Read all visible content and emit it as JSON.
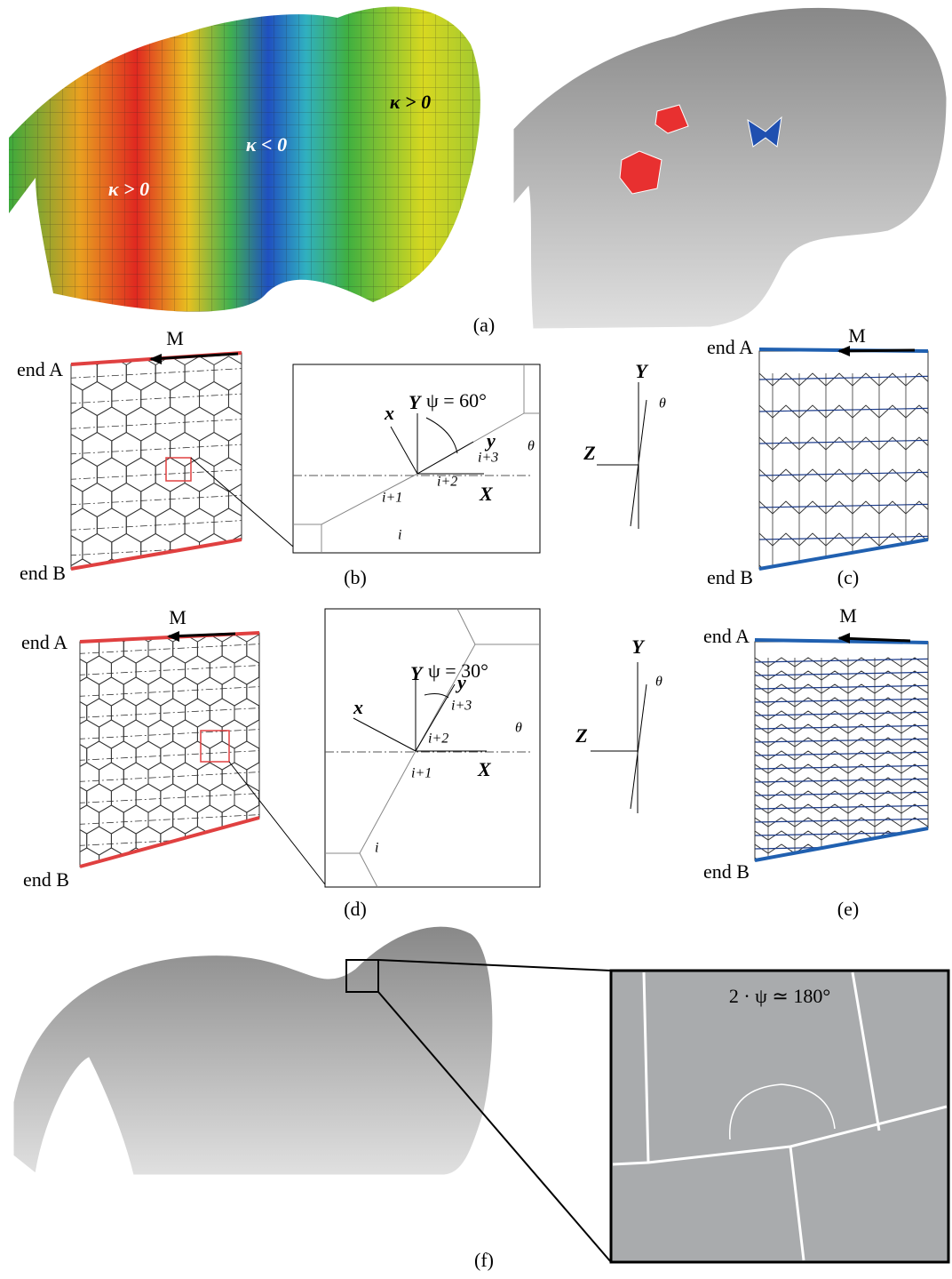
{
  "panel_a": {
    "label": "(a)",
    "annotations": [
      "κ > 0",
      "κ < 0",
      "κ > 0"
    ]
  },
  "panel_b": {
    "label": "(b)",
    "moment": "M",
    "end_a": "end A",
    "end_b": "end B"
  },
  "inset_b": {
    "x": "x",
    "Y": "Y",
    "psi": "ψ = 60°",
    "y": "y",
    "i3": "i+3",
    "i2": "i+2",
    "X": "X",
    "i1": "i+1",
    "i": "i",
    "theta": "θ"
  },
  "rotation_c": {
    "Y": "Y",
    "theta": "θ",
    "Z": "Z"
  },
  "panel_c": {
    "label": "(c)",
    "moment": "M",
    "end_a": "end A",
    "end_b": "end B"
  },
  "panel_d": {
    "label": "(d)",
    "moment": "M",
    "end_a": "end A",
    "end_b": "end B"
  },
  "inset_d": {
    "x": "x",
    "Y": "Y",
    "psi": "ψ = 30°",
    "y": "y",
    "i3": "i+3",
    "i2": "i+2",
    "X": "X",
    "i1": "i+1",
    "i": "i",
    "theta": "θ"
  },
  "rotation_e": {
    "Y": "Y",
    "theta": "θ",
    "Z": "Z"
  },
  "panel_e": {
    "label": "(e)",
    "moment": "M",
    "end_a": "end A",
    "end_b": "end B"
  },
  "panel_f": {
    "label": "(f)",
    "annotation": "2 · ψ ≃ 180°"
  }
}
